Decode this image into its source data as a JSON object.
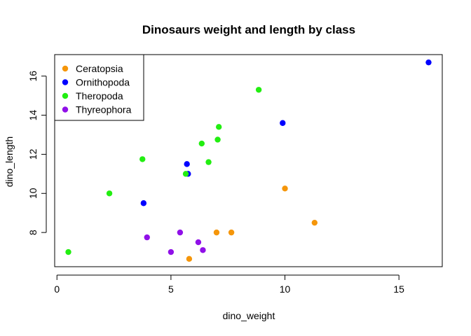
{
  "chart_data": {
    "type": "scatter",
    "title": "Dinosaurs weight and length by class",
    "xlabel": "dino_weight",
    "ylabel": "dino_length",
    "xlim": [
      -0.1,
      16.9
    ],
    "ylim": [
      6.25,
      17.1
    ],
    "xticks": [
      0,
      5,
      10,
      15
    ],
    "yticks": [
      8,
      10,
      12,
      14,
      16
    ],
    "grid": false,
    "legend_position": "top-left",
    "series": [
      {
        "name": "Ceratopsia",
        "color": "#f5960a",
        "points": [
          [
            5.8,
            6.65
          ],
          [
            7.0,
            8.0
          ],
          [
            7.65,
            8.0
          ],
          [
            10.0,
            10.25
          ],
          [
            11.3,
            8.5
          ]
        ]
      },
      {
        "name": "Ornithopoda",
        "color": "#0000ff",
        "points": [
          [
            3.8,
            9.5
          ],
          [
            5.7,
            11.5
          ],
          [
            5.75,
            11.0
          ],
          [
            9.9,
            13.6
          ],
          [
            16.3,
            16.7
          ]
        ]
      },
      {
        "name": "Theropoda",
        "color": "#22ee11",
        "points": [
          [
            0.5,
            7.0
          ],
          [
            2.3,
            10.0
          ],
          [
            3.75,
            11.75
          ],
          [
            5.65,
            11.0
          ],
          [
            6.35,
            12.55
          ],
          [
            6.65,
            11.6
          ],
          [
            7.05,
            12.75
          ],
          [
            7.1,
            13.4
          ],
          [
            8.85,
            15.3
          ]
        ]
      },
      {
        "name": "Thyreophora",
        "color": "#9010e8",
        "points": [
          [
            3.95,
            7.75
          ],
          [
            5.0,
            7.0
          ],
          [
            5.4,
            8.0
          ],
          [
            6.2,
            7.5
          ],
          [
            6.4,
            7.1
          ]
        ]
      }
    ]
  }
}
